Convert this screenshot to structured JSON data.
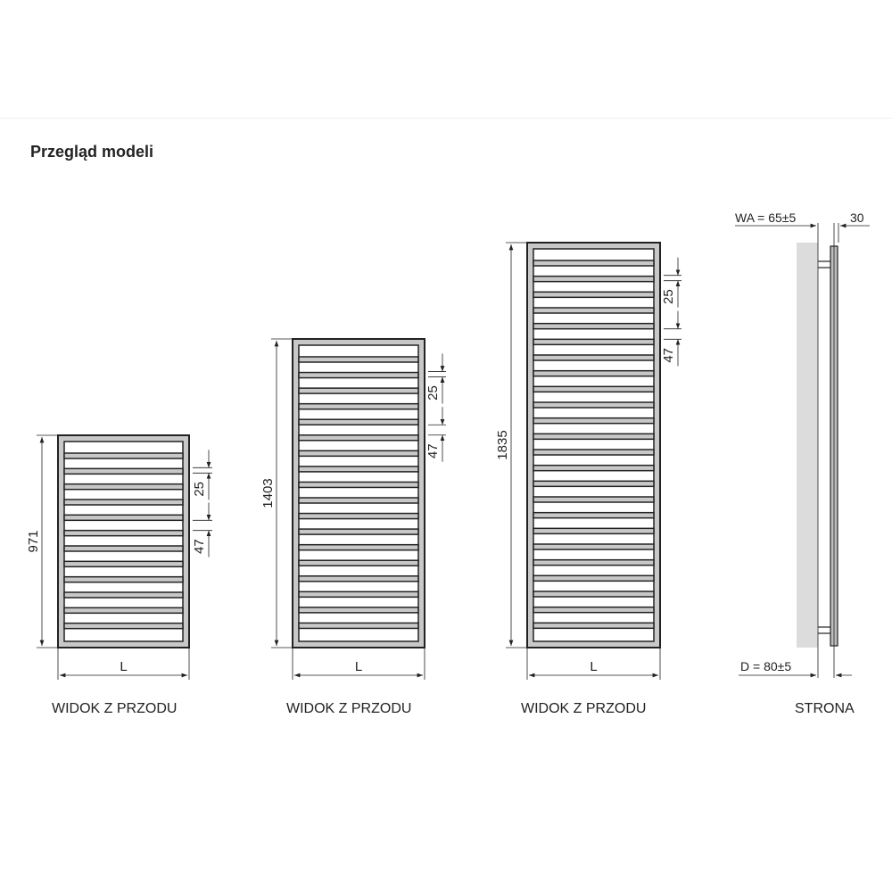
{
  "title": "Przegląd modeli",
  "colors": {
    "frame_fill": "#c8c8c8",
    "stroke": "#222222",
    "wall": "#dcdcdc"
  },
  "models": [
    {
      "height": "971",
      "width_label": "L",
      "gap_small": "25",
      "gap_large": "47",
      "caption": "WIDOK Z PRZODU"
    },
    {
      "height": "1403",
      "width_label": "L",
      "gap_small": "25",
      "gap_large": "47",
      "caption": "WIDOK Z PRZODU"
    },
    {
      "height": "1835",
      "width_label": "L",
      "gap_small": "25",
      "gap_large": "47",
      "caption": "WIDOK Z PRZODU"
    }
  ],
  "side": {
    "wa": "WA = 65±5",
    "depth": "30",
    "d": "D = 80±5",
    "caption": "STRONA"
  }
}
